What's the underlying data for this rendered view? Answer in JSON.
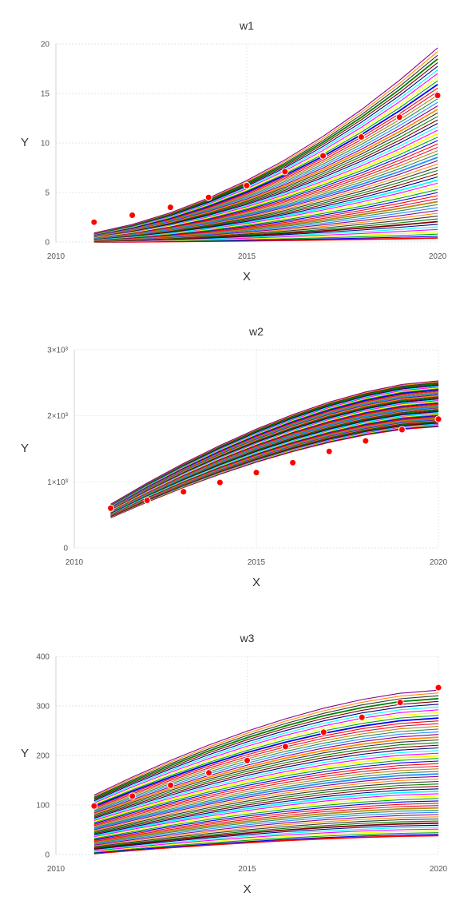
{
  "chart_data": [
    {
      "type": "line",
      "title": "w1",
      "xlabel": "X",
      "ylabel": "Y",
      "xlim": [
        2010,
        2020
      ],
      "ylim": [
        0,
        20
      ],
      "x_ticks": [
        "2010",
        "2015",
        "2020"
      ],
      "y_ticks": [
        "0",
        "5",
        "10",
        "15",
        "20"
      ],
      "grid": true,
      "observations": {
        "color": "#ff0000",
        "x": [
          2011,
          2012,
          2013,
          2014,
          2015,
          2016,
          2017,
          2018,
          2019,
          2020
        ],
        "y": [
          2.0,
          2.7,
          3.5,
          4.5,
          5.7,
          7.1,
          8.7,
          10.6,
          12.6,
          14.8
        ]
      },
      "ensemble": {
        "count": 60,
        "x": [
          2011,
          2012,
          2013,
          2014,
          2015,
          2016,
          2017,
          2018,
          2019,
          2020
        ],
        "upper_start": 0.9,
        "upper_end": 19.6,
        "lower_start": 0.0,
        "lower_end": 0.4,
        "shape": "convex"
      }
    },
    {
      "type": "line",
      "title": "w2",
      "xlabel": "X",
      "ylabel": "Y",
      "xlim": [
        2010,
        2020
      ],
      "ylim": [
        0,
        3000
      ],
      "x_ticks": [
        "2010",
        "2015",
        "2020"
      ],
      "y_ticks": [
        "0",
        "1×10³",
        "2×10³",
        "3×10³"
      ],
      "grid": true,
      "observations": {
        "color": "#ff0000",
        "x": [
          2011,
          2012,
          2013,
          2014,
          2015,
          2016,
          2017,
          2018,
          2019,
          2020
        ],
        "y": [
          600,
          720,
          850,
          990,
          1140,
          1290,
          1460,
          1620,
          1790,
          1950
        ]
      },
      "ensemble": {
        "count": 60,
        "x": [
          2011,
          2012,
          2013,
          2014,
          2015,
          2016,
          2017,
          2018,
          2019,
          2020
        ],
        "upper_start": 660,
        "upper_end": 2530,
        "lower_start": 460,
        "lower_end": 1840,
        "shape": "concave"
      }
    },
    {
      "type": "line",
      "title": "w3",
      "xlabel": "X",
      "ylabel": "Y",
      "xlim": [
        2010,
        2020
      ],
      "ylim": [
        0,
        400
      ],
      "x_ticks": [
        "2010",
        "2015",
        "2020"
      ],
      "y_ticks": [
        "0",
        "100",
        "200",
        "300",
        "400"
      ],
      "grid": true,
      "observations": {
        "color": "#ff0000",
        "x": [
          2011,
          2012,
          2013,
          2014,
          2015,
          2016,
          2017,
          2018,
          2019,
          2020
        ],
        "y": [
          98,
          118,
          140,
          165,
          190,
          218,
          247,
          277,
          307,
          337
        ]
      },
      "ensemble": {
        "count": 60,
        "x": [
          2011,
          2012,
          2013,
          2014,
          2015,
          2016,
          2017,
          2018,
          2019,
          2020
        ],
        "upper_start": 120,
        "upper_end": 332,
        "lower_start": 2,
        "lower_end": 38,
        "shape": "concave"
      }
    }
  ],
  "palette": [
    "#ff0000",
    "#0000ff",
    "#00aa00",
    "#ffff00",
    "#ff00ff",
    "#00ffff",
    "#000080",
    "#800000",
    "#008000",
    "#333333",
    "#ff8c00",
    "#8b008b",
    "#1e90ff",
    "#2e8b57",
    "#b8860b",
    "#dc143c"
  ]
}
